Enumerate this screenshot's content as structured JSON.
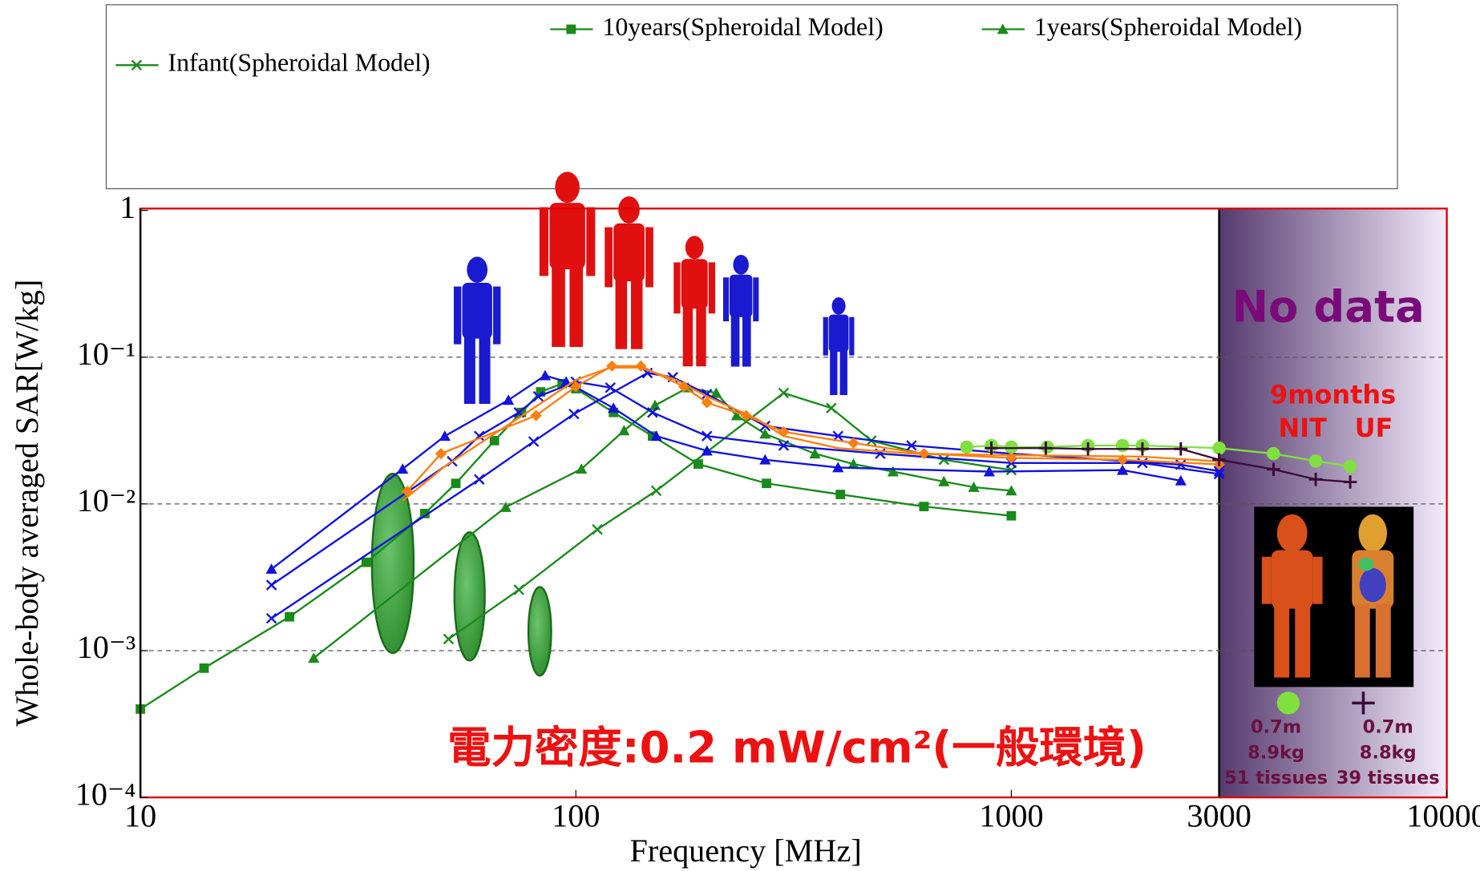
{
  "chart_data": {
    "type": "line",
    "log_x": true,
    "log_y": true,
    "grid": true,
    "legend": "top",
    "xlabel": "Frequency [MHz]",
    "ylabel": "Whole-body averaged SAR[W/kg]",
    "xlim": [
      10,
      10000
    ],
    "ylim": [
      0.0001,
      1
    ],
    "xticks": [
      10,
      100,
      1000,
      3000,
      10000
    ],
    "yticks": [
      1,
      {
        "value": 0.1,
        "label": "10⁻¹"
      },
      {
        "value": 0.01,
        "label": "10⁻²"
      },
      {
        "value": 0.001,
        "label": "10⁻³"
      },
      {
        "value": 0.0001,
        "label": "10⁻⁴"
      }
    ],
    "shaded_xrange": [
      3000,
      10000
    ],
    "annotations": {
      "power_density": "電力密度:0.2 mW/cm²(一般環境)",
      "no_data": "No data",
      "age": "9months",
      "nit": "NIT",
      "uf": "UF",
      "nit_height": "0.7m",
      "nit_weight": "8.9kg",
      "nit_tissues": "51 tissues",
      "uf_height": "0.7m",
      "uf_weight": "8.8kg",
      "uf_tissues": "39 tissues"
    },
    "series": [
      {
        "name": "10years(Spheroidal Model)",
        "color": "#1a8a1a",
        "marker": "square",
        "x": [
          10,
          14,
          22,
          33,
          45,
          53,
          65,
          75,
          83,
          93,
          100,
          122,
          150,
          191,
          274,
          405,
          630,
          1000
        ],
        "values": [
          0.0004,
          0.00076,
          0.0017,
          0.004,
          0.0086,
          0.0138,
          0.027,
          0.042,
          0.058,
          0.066,
          0.061,
          0.042,
          0.029,
          0.0187,
          0.0138,
          0.0116,
          0.0096,
          0.0083
        ]
      },
      {
        "name": "1years(Spheroidal Model)",
        "color": "#1a8a1a",
        "marker": "triangle",
        "x": [
          25,
          69,
          103,
          129,
          152,
          181,
          210,
          234,
          272,
          354,
          434,
          535,
          700,
          820,
          1000
        ],
        "values": [
          0.00089,
          0.0095,
          0.0173,
          0.0316,
          0.047,
          0.062,
          0.057,
          0.04,
          0.03,
          0.022,
          0.0187,
          0.0166,
          0.0142,
          0.013,
          0.0123
        ]
      },
      {
        "name": "Infant(Spheroidal Model)",
        "color": "#1a8a1a",
        "marker": "x",
        "x": [
          51,
          74,
          112,
          153,
          300,
          386,
          477,
          700,
          1000
        ],
        "values": [
          0.0012,
          0.0026,
          0.0067,
          0.0123,
          0.057,
          0.045,
          0.027,
          0.02,
          0.017
        ]
      },
      {
        "color": "#1010e0",
        "marker": "triangle",
        "x": [
          20,
          40,
          50,
          70,
          85,
          95,
          122,
          153,
          200,
          272,
          400,
          890,
          1800,
          2450
        ],
        "values": [
          0.0036,
          0.0173,
          0.029,
          0.051,
          0.075,
          0.068,
          0.045,
          0.029,
          0.023,
          0.02,
          0.0177,
          0.0166,
          0.017,
          0.0144
        ]
      },
      {
        "color": "#1010e0",
        "marker": "x",
        "x": [
          20,
          52,
          60,
          74,
          82,
          100,
          120,
          150,
          200,
          300,
          500,
          1000,
          2000,
          3000
        ],
        "values": [
          0.0028,
          0.0195,
          0.029,
          0.042,
          0.054,
          0.068,
          0.062,
          0.042,
          0.029,
          0.025,
          0.022,
          0.019,
          0.019,
          0.016
        ]
      },
      {
        "color": "#1010e0",
        "marker": "x",
        "x": [
          20,
          60,
          80,
          99,
          146,
          167,
          200,
          272,
          400,
          590,
          1000,
          2450,
          3000
        ],
        "values": [
          0.00166,
          0.0147,
          0.0266,
          0.041,
          0.078,
          0.073,
          0.056,
          0.034,
          0.029,
          0.025,
          0.022,
          0.0185,
          0.0167
        ]
      },
      {
        "color": "#ff7f10",
        "marker": "diamond",
        "x": [
          41,
          49,
          81,
          100,
          121,
          141,
          177,
          200,
          246,
          300,
          434,
          630,
          1000,
          1800,
          3000
        ],
        "values": [
          0.0122,
          0.022,
          0.04,
          0.063,
          0.087,
          0.087,
          0.063,
          0.049,
          0.04,
          0.031,
          0.026,
          0.022,
          0.0206,
          0.02,
          0.0186
        ]
      },
      {
        "color": "#ff7f10",
        "marker": "none",
        "x": [
          40,
          50,
          80,
          100,
          120,
          140,
          170,
          200,
          260,
          300,
          400,
          600,
          1000,
          2000,
          3000
        ],
        "values": [
          0.0105,
          0.018,
          0.045,
          0.07,
          0.085,
          0.085,
          0.07,
          0.054,
          0.038,
          0.029,
          0.024,
          0.022,
          0.0215,
          0.021,
          0.0195
        ]
      },
      {
        "color": "#80e040",
        "marker": "circle",
        "x": [
          790,
          900,
          1000,
          1210,
          1500,
          1800,
          2000,
          3000,
          4000,
          5000,
          6000
        ],
        "values": [
          0.0244,
          0.025,
          0.0244,
          0.0244,
          0.025,
          0.025,
          0.025,
          0.024,
          0.022,
          0.0196,
          0.018
        ]
      },
      {
        "color": "#3a0a3a",
        "marker": "plus",
        "x": [
          900,
          1200,
          1500,
          2000,
          2450,
          3000,
          4000,
          5000,
          6000
        ],
        "values": [
          0.024,
          0.024,
          0.0237,
          0.0237,
          0.0237,
          0.02,
          0.0172,
          0.0147,
          0.0141
        ]
      }
    ]
  }
}
